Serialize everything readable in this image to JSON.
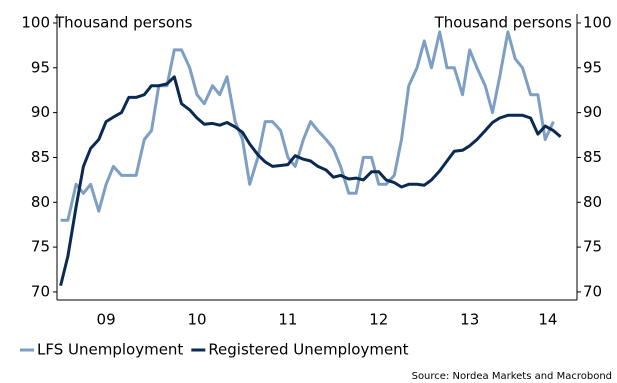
{
  "chart_data": {
    "type": "line",
    "y_label_left": "Thousand persons",
    "y_label_right": "Thousand persons",
    "source": "Source: Nordea Markets and Macrobond",
    "x": [
      2009.0,
      2009.08,
      2009.17,
      2009.25,
      2009.33,
      2009.42,
      2009.5,
      2009.58,
      2009.67,
      2009.75,
      2009.83,
      2009.92,
      2010.0,
      2010.08,
      2010.17,
      2010.25,
      2010.33,
      2010.42,
      2010.5,
      2010.58,
      2010.67,
      2010.75,
      2010.83,
      2010.92,
      2011.0,
      2011.08,
      2011.17,
      2011.25,
      2011.33,
      2011.42,
      2011.5,
      2011.58,
      2011.67,
      2011.75,
      2011.83,
      2011.92,
      2012.0,
      2012.08,
      2012.17,
      2012.25,
      2012.33,
      2012.42,
      2012.5,
      2012.58,
      2012.67,
      2012.75,
      2012.83,
      2012.92,
      2013.0,
      2013.08,
      2013.17,
      2013.25,
      2013.33,
      2013.42,
      2013.5,
      2013.58,
      2013.67,
      2013.75,
      2013.83,
      2013.92,
      2014.0,
      2014.08,
      2014.17,
      2014.25,
      2014.33,
      2014.42,
      2014.5
    ],
    "series": [
      {
        "name": "LFS Unemployment",
        "color": "#7d9fc4",
        "values": [
          78,
          78,
          82,
          81,
          82,
          79,
          82,
          84,
          83,
          83,
          83,
          87,
          88,
          93,
          93,
          97,
          97,
          95,
          92,
          91,
          93,
          92,
          94,
          89,
          87,
          82,
          85,
          89,
          89,
          88,
          85,
          84,
          87,
          89,
          88,
          87,
          86,
          84,
          81,
          81,
          85,
          85,
          82,
          82,
          83,
          87,
          93,
          95,
          98,
          95,
          99,
          95,
          95,
          92,
          97,
          95,
          93,
          90,
          94,
          99,
          96,
          95,
          92,
          92,
          87,
          89,
          null
        ]
      },
      {
        "name": "Registered Unemployment",
        "color": "#0b2a52",
        "values": [
          70.7,
          74,
          79.5,
          84,
          86,
          87,
          89,
          89.5,
          90,
          91.7,
          91.7,
          92,
          93,
          93,
          93.2,
          94,
          91,
          90.3,
          89.4,
          88.7,
          88.8,
          88.6,
          88.9,
          88.4,
          87.8,
          86.5,
          85.3,
          84.5,
          84,
          84.1,
          84.2,
          85.2,
          84.8,
          84.6,
          84,
          83.6,
          82.8,
          83,
          82.6,
          82.7,
          82.5,
          83.4,
          83.4,
          82.5,
          82.2,
          81.7,
          82,
          82,
          81.9,
          82.5,
          83.5,
          84.6,
          85.7,
          85.8,
          86.3,
          87,
          88,
          88.9,
          89.4,
          89.7,
          89.7,
          89.7,
          89.4,
          87.6,
          88.5,
          88,
          87.3
        ]
      }
    ],
    "xlim": [
      2008.96,
      2014.68
    ],
    "xticks": [
      {
        "value": 2009.5,
        "label": "09"
      },
      {
        "value": 2010.5,
        "label": "10"
      },
      {
        "value": 2011.5,
        "label": "11"
      },
      {
        "value": 2012.5,
        "label": "12"
      },
      {
        "value": 2013.5,
        "label": "13"
      },
      {
        "value": 2014.36,
        "label": "14"
      }
    ],
    "ylim": [
      69.1,
      101
    ],
    "yticks": [
      70,
      75,
      80,
      85,
      90,
      95,
      100
    ],
    "y2lim": [
      69.1,
      101
    ],
    "y2ticks": [
      70,
      75,
      80,
      85,
      90,
      95,
      100
    ],
    "grid": false
  }
}
